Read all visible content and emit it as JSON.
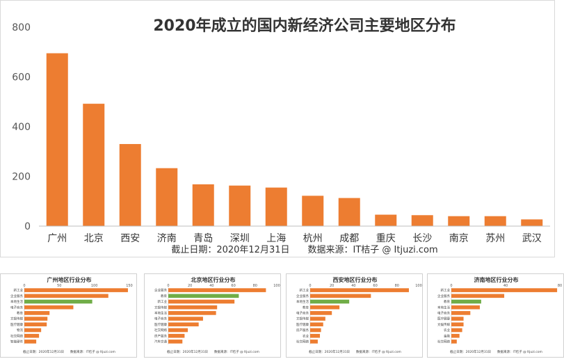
{
  "main": {
    "title": "2020年成立的国内新经济公司主要地区分布",
    "note": "截止日期：2020年12月31日　　数据来源：IT桔子 @ Itjuzi.com",
    "bar_color": "#ED7D31",
    "chart_data": {
      "type": "bar",
      "categories": [
        "广州",
        "北京",
        "西安",
        "济南",
        "青岛",
        "深圳",
        "上海",
        "杭州",
        "成都",
        "重庆",
        "长沙",
        "南京",
        "苏州",
        "武汉"
      ],
      "values": [
        695,
        492,
        330,
        233,
        168,
        163,
        155,
        122,
        113,
        46,
        44,
        40,
        40,
        27
      ],
      "yticks": [
        0,
        200,
        400,
        600,
        800
      ],
      "ylim": [
        0,
        800
      ]
    }
  },
  "subcharts": [
    {
      "title": "广州地区行业分布",
      "note": "截止日期：2020年12月31日　　数据来源：IT桔子 @ Itjuzi.com",
      "chart_data": {
        "type": "bar",
        "orientation": "horizontal",
        "categories": [
          "新工业",
          "企业服务",
          "本地生活",
          "电子商务",
          "教育",
          "文娱传媒",
          "医疗健康",
          "物流",
          "社交网络",
          "智能硬件"
        ],
        "values": [
          148,
          120,
          97,
          70,
          36,
          33,
          32,
          24,
          21,
          17
        ],
        "highlight_index": 2,
        "xticks": [
          0,
          50,
          100,
          150
        ],
        "xlim": [
          0,
          155
        ]
      }
    },
    {
      "title": "北京地区行业分布",
      "note": "截止日期：2020年12月31日　　数据来源：IT桔子 @ Itjuzi.com",
      "chart_data": {
        "type": "bar",
        "orientation": "horizontal",
        "categories": [
          "企业服务",
          "教育",
          "新工业",
          "文娱传媒",
          "本地生活",
          "电子商务",
          "医疗健康",
          "社交网络",
          "房产服务",
          "汽车交通"
        ],
        "values": [
          90,
          65,
          61,
          45,
          44,
          32,
          28,
          18,
          15,
          13
        ],
        "highlight_index": 1,
        "xticks": [
          0,
          20,
          40,
          60,
          80,
          100
        ],
        "xlim": [
          0,
          100
        ]
      }
    },
    {
      "title": "西安地区行业分布",
      "note": "截止日期：2020年12月31日　　数据来源：IT桔子 @ Itjuzi.com",
      "chart_data": {
        "type": "bar",
        "orientation": "horizontal",
        "categories": [
          "新工业",
          "企业服务",
          "本地生活",
          "教育",
          "电子商务",
          "文娱传媒",
          "医疗健康",
          "房产服务",
          "农业",
          "社交网络"
        ],
        "values": [
          91,
          56,
          36,
          27,
          20,
          14,
          12,
          10,
          9,
          7
        ],
        "highlight_index": 2,
        "xticks": [
          0,
          20,
          40,
          60,
          80,
          100
        ],
        "xlim": [
          0,
          100
        ]
      }
    },
    {
      "title": "济南地区行业分布",
      "note": "截止日期：2020年12月31日　　数据来源：IT桔子 @ Itjuzi.com",
      "chart_data": {
        "type": "bar",
        "orientation": "horizontal",
        "categories": [
          "新工业",
          "企业服务",
          "教育",
          "本地生活",
          "电子商务",
          "医疗健康",
          "文娱传媒",
          "农业",
          "金融",
          "社交网络"
        ],
        "values": [
          78,
          39,
          22,
          21,
          14,
          9,
          9,
          8,
          6,
          4
        ],
        "highlight_index": 2,
        "xticks": [
          0,
          40,
          80
        ],
        "xlim": [
          0,
          80
        ]
      }
    }
  ],
  "colors": {
    "orange": "#ED7D31",
    "green": "#70AD47",
    "axis": "#bfbfbf"
  }
}
